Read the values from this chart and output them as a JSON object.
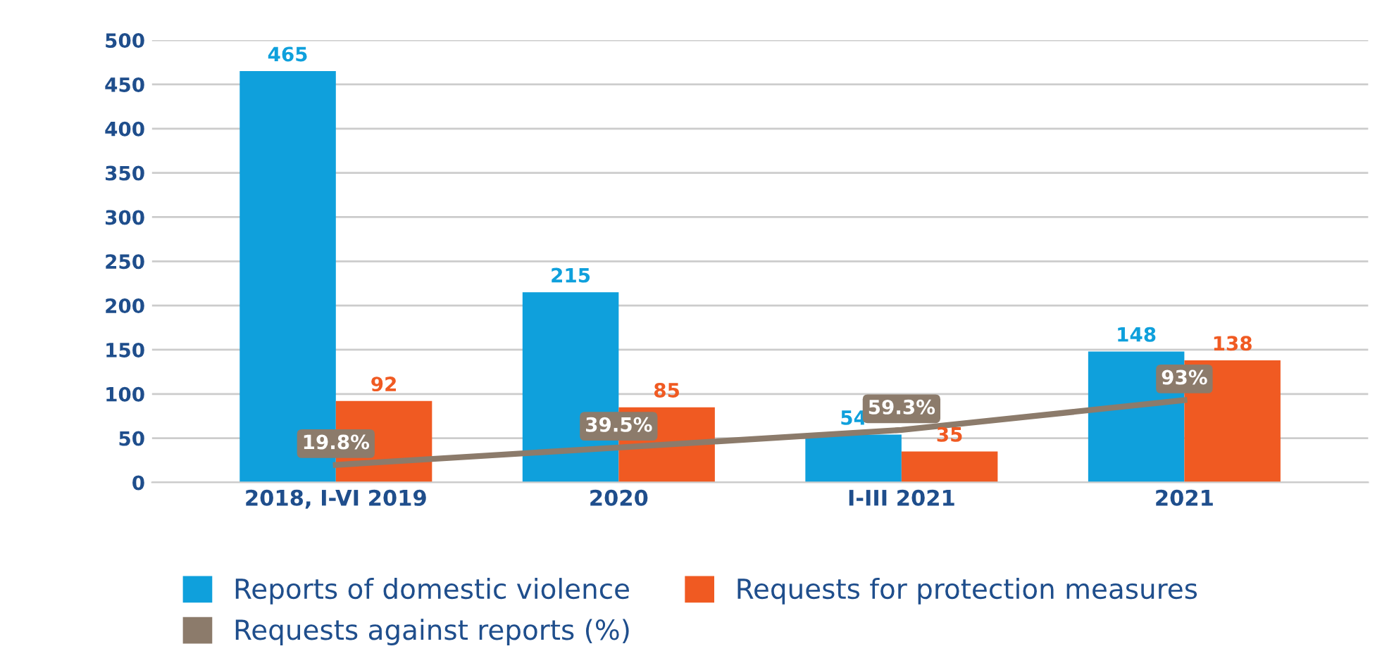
{
  "chart_data": {
    "type": "bar",
    "categories": [
      "2018, I-VI 2019",
      "2020",
      "I-III 2021",
      "2021"
    ],
    "series": [
      {
        "name": "Reports of domestic violence",
        "color": "#0fa0dc",
        "values": [
          465,
          215,
          54,
          148
        ],
        "data_labels": true
      },
      {
        "name": "Requests for protection measures",
        "color": "#f05a22",
        "values": [
          92,
          85,
          35,
          138
        ],
        "data_labels": true
      },
      {
        "name": "Requests against reports (%)",
        "type": "line",
        "color": "#8c7b6b",
        "values": [
          19.8,
          39.5,
          59.3,
          93
        ],
        "value_labels": [
          "19.8%",
          "39.5%",
          "59.3%",
          "93%"
        ]
      }
    ],
    "ylim": [
      0,
      500
    ],
    "yticks": [
      0,
      50,
      100,
      150,
      200,
      250,
      300,
      350,
      400,
      450,
      500
    ],
    "grid": "y",
    "legend": "bottom",
    "marker": "none",
    "line_style": "solid"
  }
}
